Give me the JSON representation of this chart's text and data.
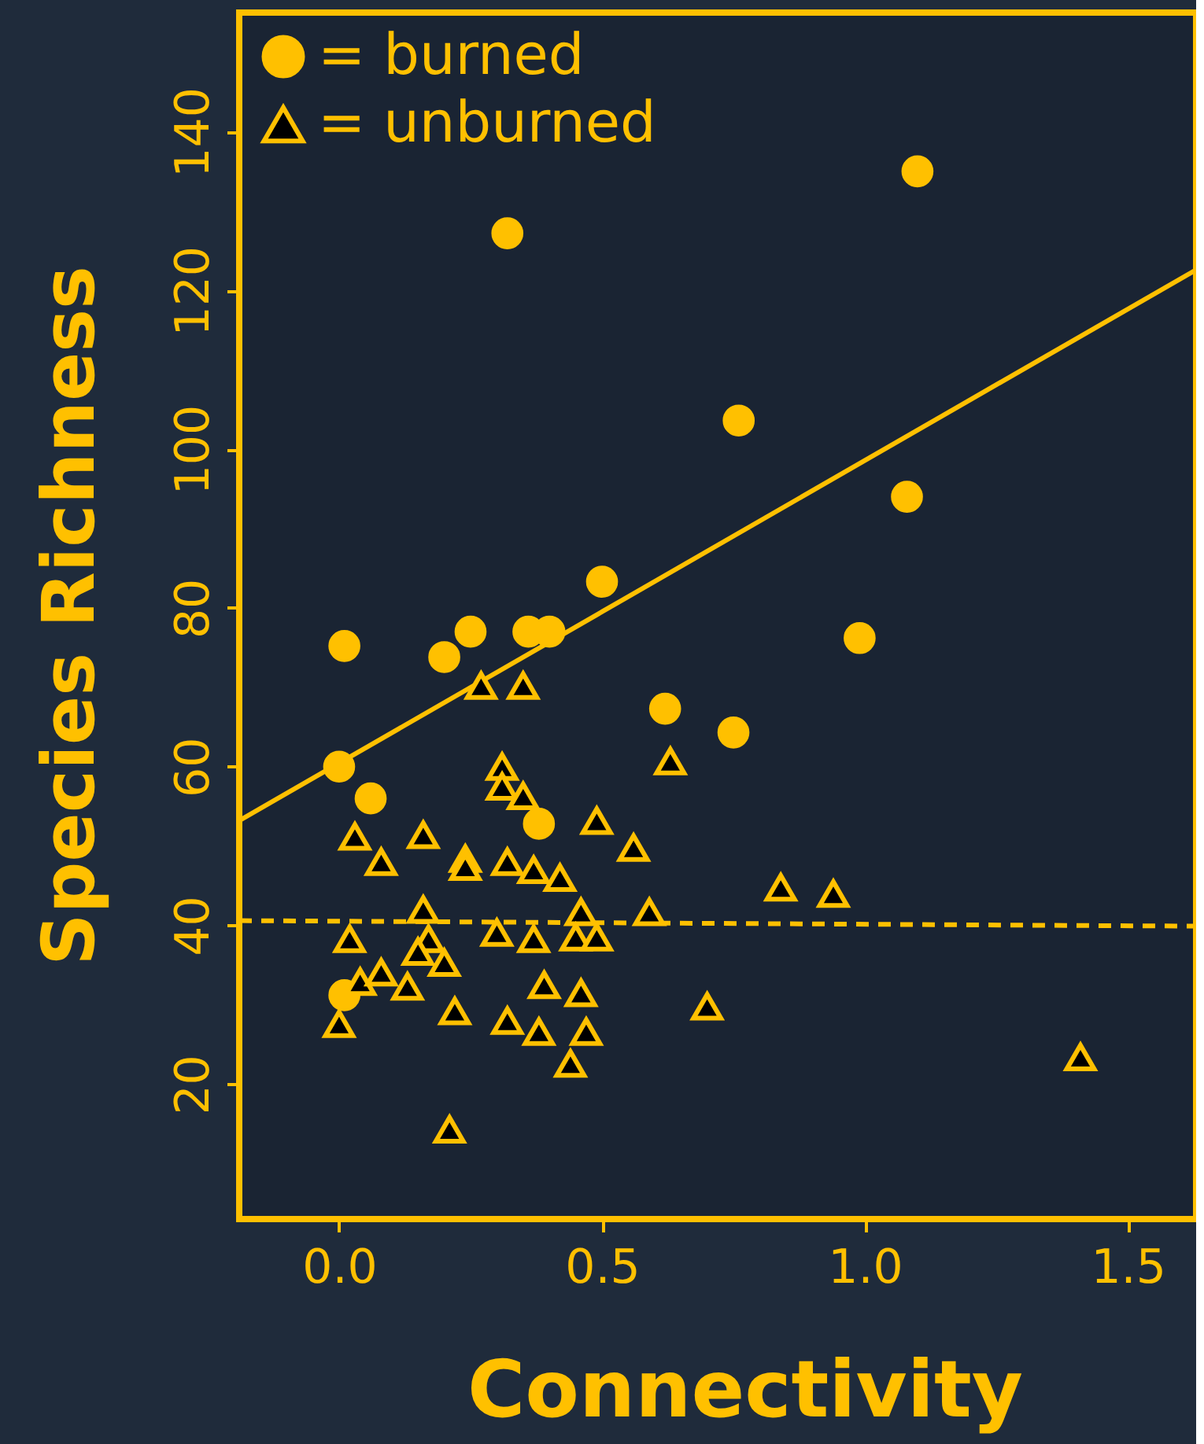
{
  "chart_data": {
    "type": "scatter",
    "xlabel": "Connectivity",
    "ylabel": "Species Richness",
    "xlim": [
      -0.19,
      1.63
    ],
    "ylim": [
      3,
      155
    ],
    "xticks": [
      {
        "value": 0,
        "label": "0.0"
      },
      0.5,
      {
        "value": 1,
        "label": "1.0"
      },
      1.5
    ],
    "yticks": [
      20,
      40,
      60,
      80,
      100,
      120,
      140
    ],
    "grid": false,
    "legend": "top left",
    "series": [
      {
        "name": "= burned",
        "color": "#ffc000",
        "marker": "circle",
        "x": [
          0.01,
          0,
          0.06,
          0.2,
          0.25,
          0.32,
          0.36,
          0.4,
          0.38,
          0.5,
          0.62,
          0.75,
          0.76,
          0.99,
          1.08,
          1.1,
          0.01
        ],
        "values": [
          75.2,
          60,
          56,
          73.8,
          77,
          127.2,
          77,
          77,
          52.8,
          83.3,
          67.3,
          64.3,
          103.6,
          76.2,
          94,
          135,
          31.2
        ]
      },
      {
        "name": "= unburned",
        "color": "#ffc000",
        "marker": "triangle",
        "x": [
          0.27,
          0.35,
          0.31,
          0.31,
          0.35,
          0.63,
          0.03,
          0.16,
          0.08,
          0.24,
          0.24,
          0.32,
          0.37,
          0.42,
          0.49,
          0.56,
          0.84,
          0.94,
          0.59,
          0.16,
          0.46,
          0.02,
          0.17,
          0.3,
          0.37,
          0.45,
          0.49,
          0.15,
          0.2,
          0,
          0.04,
          0.08,
          0.13,
          0.39,
          0.46,
          0.22,
          0.32,
          0.38,
          0.47,
          0.44,
          0.7,
          1.41,
          0.21
        ],
        "values": [
          70.2,
          70.2,
          60,
          57.5,
          56.3,
          60.7,
          51.2,
          51.4,
          48,
          48.4,
          47.4,
          48,
          47,
          46,
          53.2,
          49.8,
          44.8,
          44,
          41.7,
          42,
          41.7,
          38.3,
          38.3,
          39.1,
          38.3,
          38.5,
          38.5,
          36.7,
          35.3,
          27.6,
          32.9,
          34.1,
          32.3,
          32.5,
          31.5,
          29.2,
          28,
          26.6,
          26.6,
          22.6,
          29.8,
          23.4,
          14.3
        ]
      },
      {
        "type": "line",
        "color": "#ffc000",
        "line_style": "solid",
        "marker": "none",
        "x": [
          -0.19,
          1.63
        ],
        "values": [
          53.2,
          122.6
        ]
      },
      {
        "type": "line",
        "color": "#ffc000",
        "line_style": "dashed",
        "marker": "none",
        "x": [
          -0.19,
          1.63
        ],
        "values": [
          40.6,
          39.9
        ]
      }
    ]
  }
}
